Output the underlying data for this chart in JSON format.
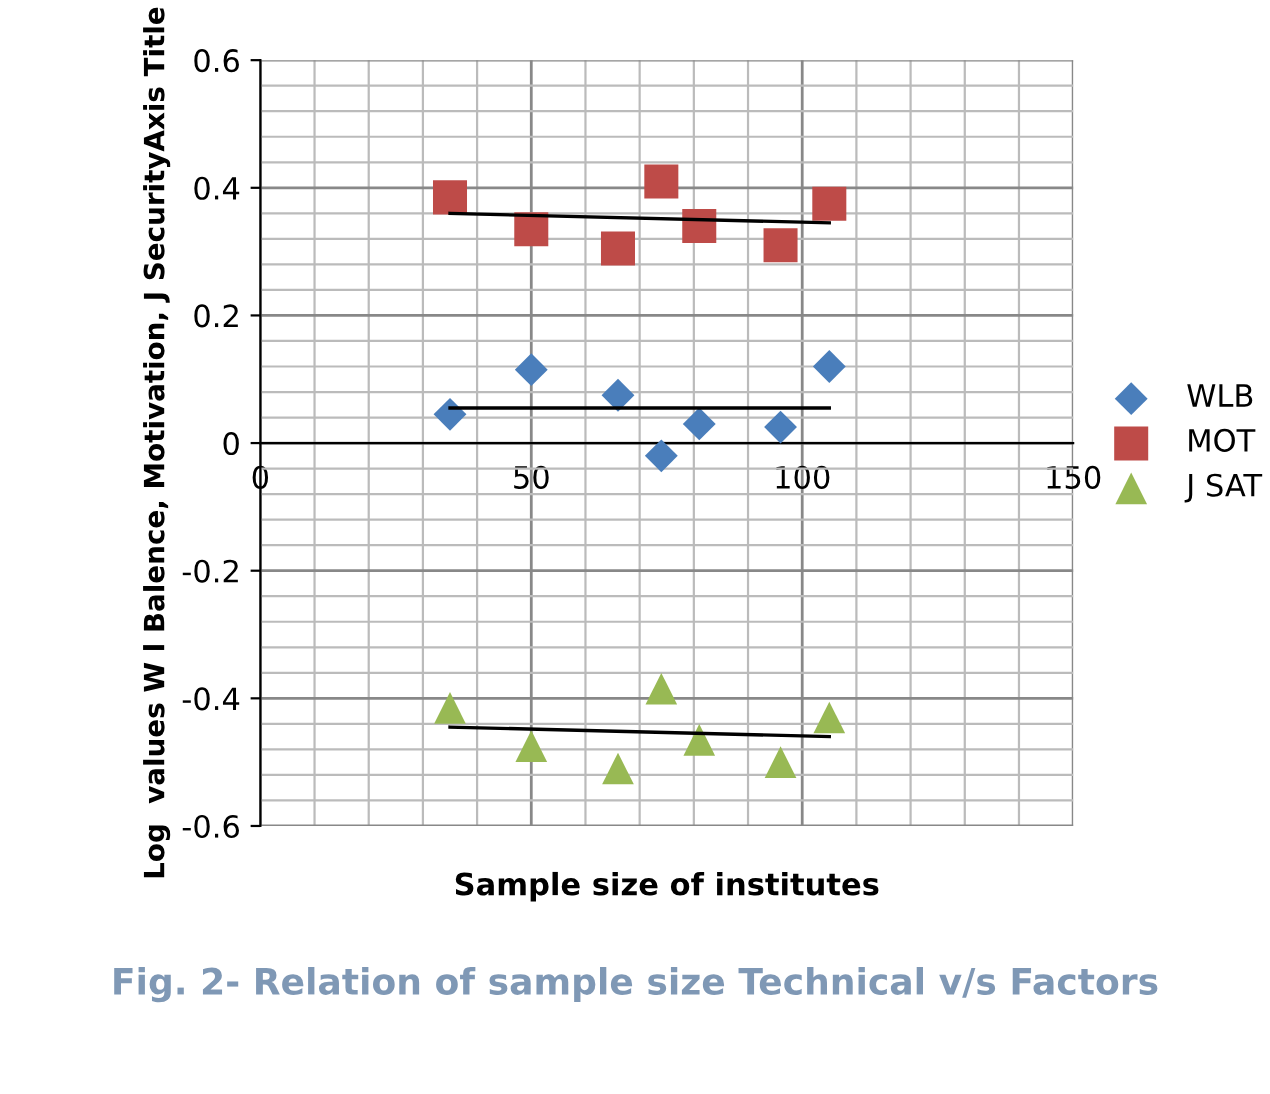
{
  "chart_data": {
    "type": "scatter",
    "xlabel": "Sample size of institutes",
    "ylabel": "Log  values W l Balence, Motivation, J SecurityAxis Title",
    "annotations": [
      "Fig. 2- Relation of sample size Technical v/s Factors"
    ],
    "series": [
      {
        "name": "WLB",
        "color": "#4a7ebb",
        "marker": "diamond",
        "x": [
          35,
          50,
          66,
          74,
          81,
          96,
          105
        ],
        "values": [
          0.045,
          0.115,
          0.075,
          -0.02,
          0.03,
          0.025,
          0.12
        ]
      },
      {
        "name": "MOT",
        "color": "#be4b48",
        "marker": "square",
        "x": [
          35,
          50,
          66,
          74,
          81,
          96,
          105
        ],
        "values": [
          0.385,
          0.335,
          0.305,
          0.41,
          0.34,
          0.31,
          0.375
        ]
      },
      {
        "name": "J SAT",
        "color": "#98b954",
        "marker": "triangle",
        "x": [
          35,
          50,
          66,
          74,
          81,
          96,
          105
        ],
        "values": [
          -0.415,
          -0.475,
          -0.51,
          -0.385,
          -0.465,
          -0.5,
          -0.43
        ]
      },
      {
        "type": "line",
        "color": "#000000",
        "x": [
          35,
          105
        ],
        "values": [
          0.36,
          0.345
        ]
      },
      {
        "type": "line",
        "color": "#000000",
        "x": [
          35,
          105
        ],
        "values": [
          0.055,
          0.055
        ]
      },
      {
        "type": "line",
        "color": "#000000",
        "x": [
          35,
          105
        ],
        "values": [
          -0.445,
          -0.46
        ]
      }
    ],
    "xlim": [
      0,
      150
    ],
    "xticks": [
      0,
      50,
      100,
      150
    ],
    "ylim": [
      -0.6,
      0.6
    ],
    "yticks": [
      -0.6,
      -0.4,
      -0.2,
      0,
      0.2,
      0.4,
      0.6
    ],
    "grid": true,
    "legend": "right"
  }
}
